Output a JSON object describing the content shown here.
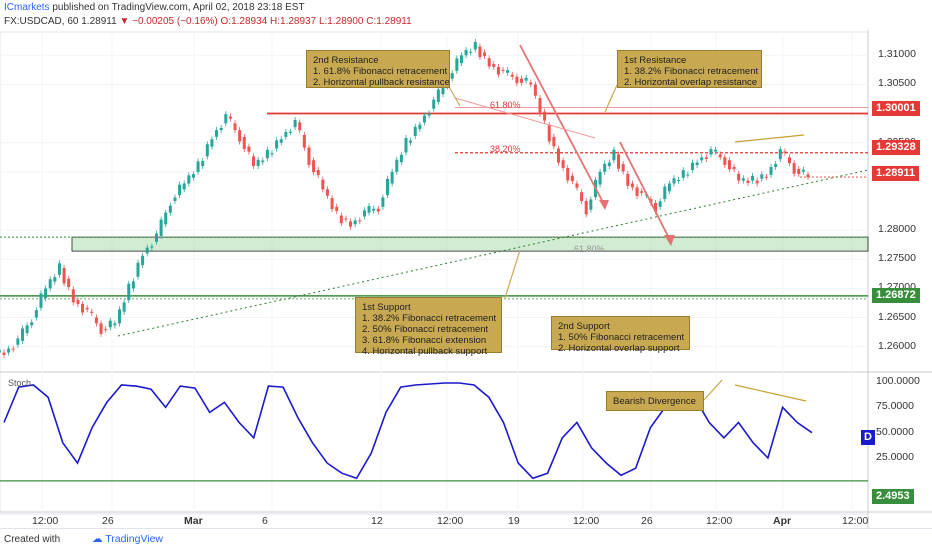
{
  "header": {
    "author": "ICmarkets",
    "published": "published on TradingView.com, April 02, 2018 23:18 EST",
    "symbol": "FX:USDCAD, 60",
    "last": "1.28911",
    "change": "▼ −0.00205 (−0.16%)",
    "ohlc_o": "O:1.28934",
    "ohlc_h": "H:1.28937",
    "ohlc_l": "L:1.28900",
    "ohlc_c": "C:1.28911"
  },
  "annotations": {
    "res2": "2nd Resistance\n1. 61.8% Fibonacci retracement\n2. Horizontal pullback resistance",
    "res1": "1st Resistance\n1. 38.2% Fibonacci retracement\n2. Horizontal overlap resistance",
    "sup1": "1st Support\n1. 38.2% Fibonacci retracement\n2. 50% Fibonacci retracement\n3. 61.8% Fibonacci extension\n4. Horizontal pullback support",
    "sup2": "2nd Support\n1. 50% Fibonacci retracement\n2. Horizontal overlap support",
    "divergence": "Bearish Divergence"
  },
  "fib_labels": {
    "f618_top": "61.80%",
    "f382": "38.20%",
    "f618_ext": "61.80%"
  },
  "price_labels": {
    "l1": "1.30001",
    "l2": "1.29328",
    "l3": "1.28911",
    "l4": "1.26872",
    "stoch_level": "2.4953",
    "stoch_marker": "D"
  },
  "stoch_title": "Stoch",
  "price_axis_ticks": [
    "1.31000",
    "1.30500",
    "1.29500",
    "1.29000",
    "1.28000",
    "1.27500",
    "1.27000",
    "1.26500",
    "1.26000"
  ],
  "stoch_axis_ticks": [
    "100.0000",
    "75.0000",
    "50.0000",
    "25.0000"
  ],
  "x_ticks": [
    "12:00",
    "26",
    "Mar",
    "6",
    "12",
    "12:00",
    "19",
    "12:00",
    "26",
    "12:00",
    "Apr",
    "12:00"
  ],
  "footer": {
    "created": "Created with",
    "brand": "TradingView"
  },
  "colors": {
    "bull": "#26a69a",
    "bear": "#ef5350",
    "resistance": "#e53935",
    "support": "#388e3c",
    "stoch": "#1a1acc",
    "annotation": "#c8a951",
    "divergence": "#c9a02c"
  },
  "chart_data": {
    "type": "line",
    "symbol": "USDCAD",
    "timeframe": "60",
    "series": [
      {
        "name": "USDCAD",
        "values": [
          1.259,
          1.261,
          1.265,
          1.27,
          1.2735,
          1.268,
          1.266,
          1.263,
          1.264,
          1.27,
          1.276,
          1.279,
          1.285,
          1.288,
          1.291,
          1.296,
          1.2995,
          1.296,
          1.291,
          1.293,
          1.296,
          1.2985,
          1.292,
          1.287,
          1.2825,
          1.281,
          1.283,
          1.284,
          1.29,
          1.295,
          1.2985,
          1.302,
          1.306,
          1.31,
          1.3115,
          1.3085,
          1.307,
          1.306,
          1.305,
          1.298,
          1.292,
          1.288,
          1.2835,
          1.29,
          1.293,
          1.288,
          1.286,
          1.284,
          1.288,
          1.2895,
          1.292,
          1.2935,
          1.292,
          1.2885,
          1.2885,
          1.2895,
          1.2935,
          1.2905,
          1.2891
        ]
      },
      {
        "name": "Stoch",
        "values": [
          60,
          95,
          97,
          85,
          40,
          20,
          55,
          80,
          97,
          96,
          93,
          75,
          96,
          94,
          70,
          80,
          60,
          45,
          96,
          95,
          65,
          40,
          20,
          10,
          5,
          30,
          70,
          95,
          97,
          98,
          99,
          99,
          97,
          85,
          60,
          20,
          5,
          10,
          45,
          60,
          35,
          20,
          8,
          15,
          55,
          75,
          90,
          85,
          60,
          45,
          60,
          40,
          25,
          75,
          60,
          50
        ]
      }
    ],
    "levels": {
      "resistance_2": 1.30001,
      "resistance_1": 1.29328,
      "last": 1.28911,
      "support_2": 1.26872,
      "support_zone": [
        1.2764,
        1.2788
      ],
      "stoch_line": 2.4953
    },
    "ylim_price": [
      1.256,
      1.314
    ],
    "ylim_stoch": [
      0,
      100
    ],
    "grid": true
  }
}
